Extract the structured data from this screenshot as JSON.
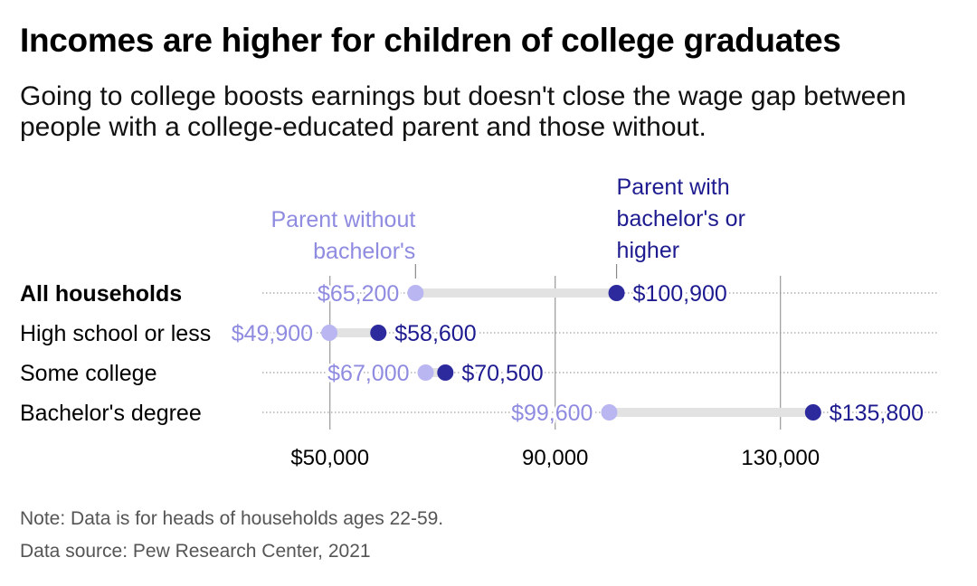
{
  "header": {
    "title": "Incomes are higher for children of college graduates",
    "subtitle": "Going to college boosts earnings but doesn't close the wage gap between people with a college-educated parent and those without."
  },
  "footer": {
    "note": "Note: Data is for heads of households ages 22-59.",
    "source": "Data source: Pew Research Center, 2021"
  },
  "colors": {
    "without": "#b9b6f2",
    "without_label": "#8f8be0",
    "with": "#2d2a9e",
    "with_label": "#1d1b8f",
    "connector": "#e2e2e2",
    "gridline": "#999999"
  },
  "chart_data": {
    "type": "dumbbell",
    "xlim": [
      38000,
      158000
    ],
    "categories": [
      "All households",
      "High school or less",
      "Some college",
      "Bachelor's degree"
    ],
    "category_bold": [
      "All households"
    ],
    "series": [
      {
        "name": "Parent without bachelor's",
        "values": [
          65200,
          49900,
          67000,
          99600
        ],
        "labels": [
          "$65,200",
          "$49,900",
          "$67,000",
          "$99,600"
        ]
      },
      {
        "name": "Parent with bachelor's or higher",
        "values": [
          100900,
          58600,
          70500,
          135800
        ],
        "labels": [
          "$100,900",
          "$58,600",
          "$70,500",
          "$135,800"
        ]
      }
    ],
    "x_ticks": [
      {
        "value": 50000,
        "label": "$50,000"
      },
      {
        "value": 90000,
        "label": "90,000"
      },
      {
        "value": 130000,
        "label": "130,000"
      }
    ],
    "legend_placement": "annotated above first row",
    "grid": "vertical gridlines at ticks, dotted row guides"
  }
}
